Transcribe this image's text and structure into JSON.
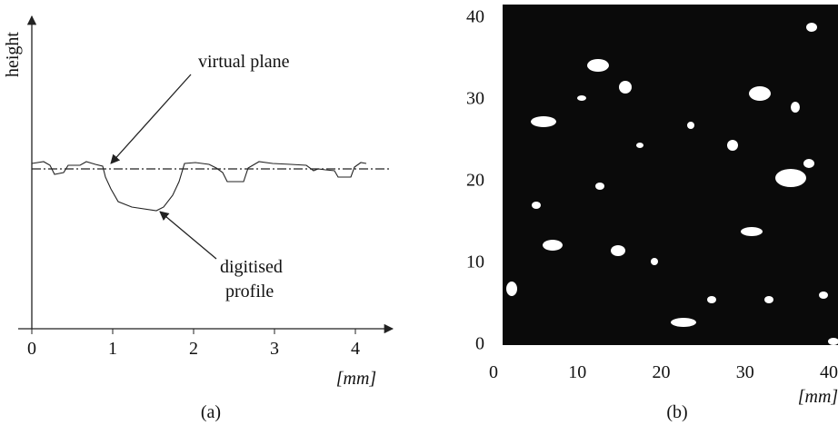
{
  "panel_a": {
    "y_label": "height",
    "annotation_plane": "virtual plane",
    "annotation_profile": [
      "digitised",
      "profile"
    ],
    "xticks": [
      0,
      1,
      2,
      3,
      4
    ],
    "unit": "[mm]",
    "caption": "(a)"
  },
  "panel_b": {
    "xticks": [
      0,
      10,
      20,
      30,
      40
    ],
    "yticks": [
      0,
      10,
      20,
      30,
      40
    ],
    "unit": "[mm]",
    "caption": "(b)"
  }
}
